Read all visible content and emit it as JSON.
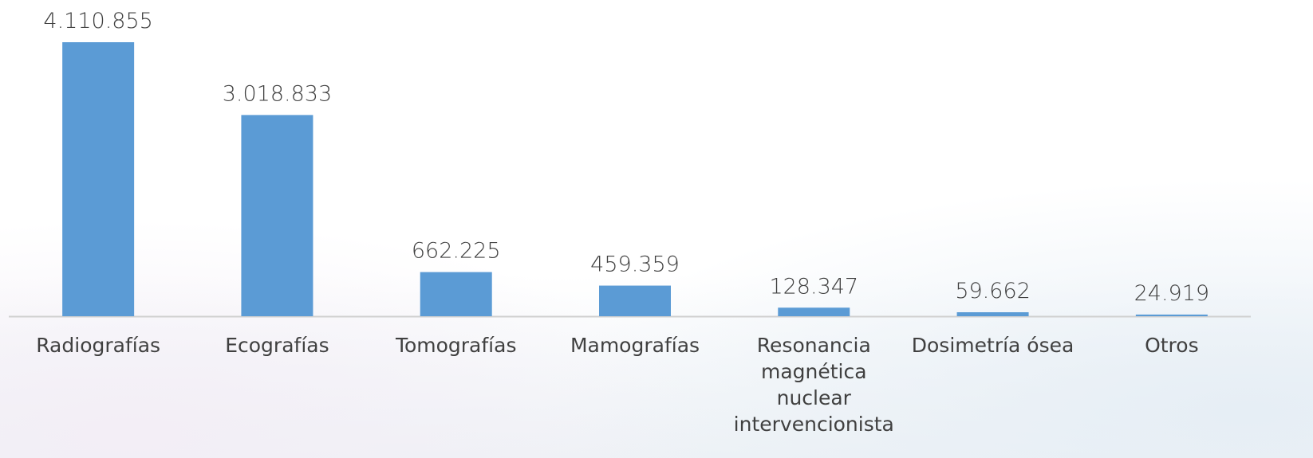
{
  "chart_data": {
    "type": "bar",
    "categories": [
      "Radiografías",
      "Ecografías",
      "Tomografías",
      "Mamografías",
      "Resonancia magnética nuclear intervencionista",
      "Dosimetría ósea",
      "Otros"
    ],
    "values": [
      4110855,
      3018833,
      662225,
      459359,
      128347,
      59662,
      24919
    ],
    "value_labels": [
      "4.110.855",
      "3.018.833",
      "662.225",
      "459.359",
      "128.347",
      "59.662",
      "24.919"
    ],
    "color": "#5b9bd5"
  }
}
